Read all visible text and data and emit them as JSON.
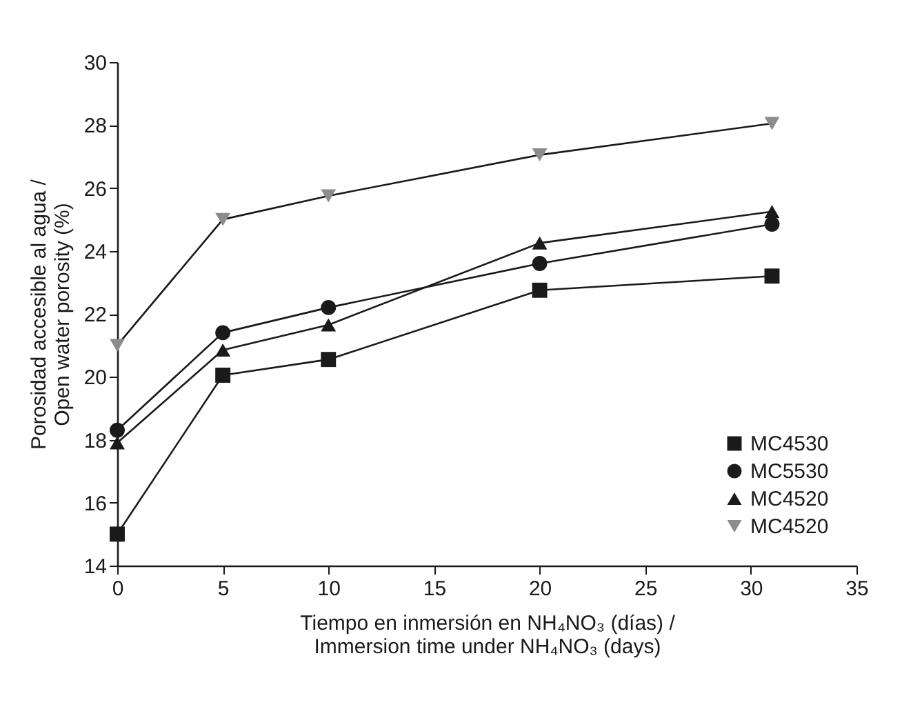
{
  "chart_data": {
    "type": "line",
    "xlabel": "Tiempo en inmersión en NH₄NO₃ (días) / Immersion time under NH₄NO₃ (days)",
    "ylabel": "Porosidad accesible al agua / Open water porosity (%)",
    "x": [
      0,
      5,
      10,
      20,
      31
    ],
    "series": [
      {
        "name": "MC4530",
        "color": "#1a1a1a",
        "marker": "square",
        "values": [
          15.0,
          20.05,
          20.55,
          22.75,
          23.2
        ]
      },
      {
        "name": "MC5530",
        "color": "#1a1a1a",
        "marker": "circle",
        "values": [
          18.3,
          21.4,
          22.2,
          23.6,
          24.85
        ]
      },
      {
        "name": "MC4520",
        "color": "#1a1a1a",
        "marker": "triangle",
        "values": [
          17.9,
          20.85,
          21.65,
          24.25,
          25.25
        ]
      },
      {
        "name": "MC4520",
        "color": "#8c8c8c",
        "marker": "triangle-down",
        "values": [
          21.0,
          25.0,
          25.75,
          27.05,
          28.05
        ]
      }
    ],
    "xlim": [
      0,
      35
    ],
    "xticks": [
      0,
      5,
      10,
      15,
      20,
      25,
      30,
      35
    ],
    "ylim": [
      14,
      30
    ],
    "yticks": [
      14,
      16,
      18,
      20,
      22,
      24,
      26,
      28,
      30
    ],
    "grid": false,
    "legend": "bottom right",
    "line_style": "solid"
  }
}
